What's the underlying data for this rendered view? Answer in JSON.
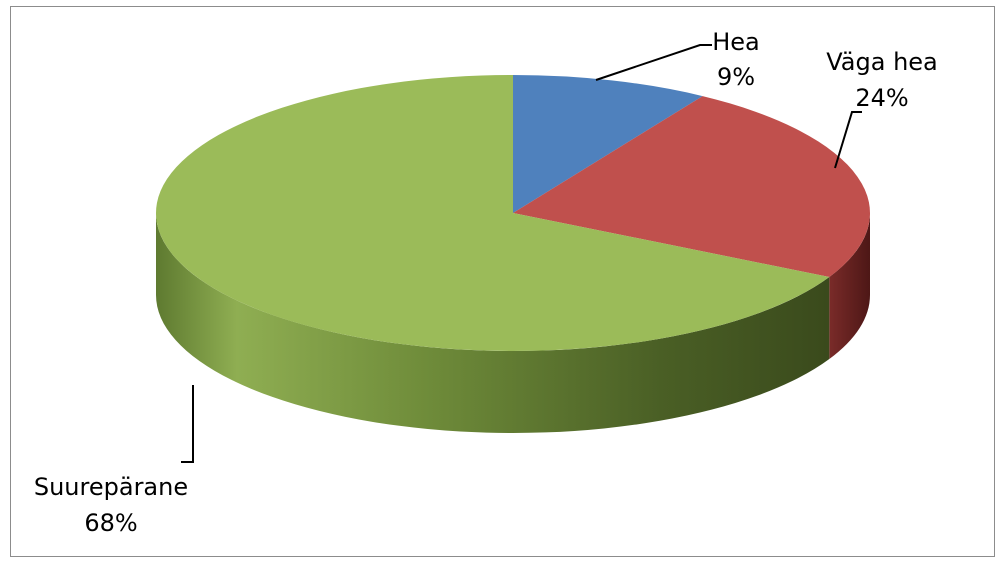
{
  "chart_data": {
    "type": "pie",
    "variant": "3d",
    "slices": [
      {
        "label": "Hea",
        "percent_label": "9%",
        "value": 9,
        "color": "#4f81bd",
        "side_color": "#2e4d72"
      },
      {
        "label": "Väga hea",
        "percent_label": "24%",
        "value": 24,
        "color": "#c0504d",
        "side_color": "#6e2321"
      },
      {
        "label": "Suurepärane",
        "percent_label": "68%",
        "value": 68,
        "color": "#9bbb59",
        "side_color": "#5f7a2c"
      }
    ],
    "border_color": "#8c8c8c"
  }
}
